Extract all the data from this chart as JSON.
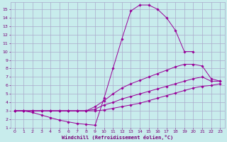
{
  "background_color": "#c8ecec",
  "grid_color": "#aaaacc",
  "line_color": "#990099",
  "marker_color": "#990099",
  "xlabel": "Windchill (Refroidissement éolien,°C)",
  "xlabel_color": "#770077",
  "tick_color": "#770077",
  "xlim": [
    -0.5,
    23.5
  ],
  "ylim": [
    1,
    15.8
  ],
  "xticks": [
    0,
    1,
    2,
    3,
    4,
    5,
    6,
    7,
    8,
    9,
    10,
    11,
    12,
    13,
    14,
    15,
    16,
    17,
    18,
    19,
    20,
    21,
    22,
    23
  ],
  "yticks": [
    1,
    2,
    3,
    4,
    5,
    6,
    7,
    8,
    9,
    10,
    11,
    12,
    13,
    14,
    15
  ],
  "curve1_x": [
    0,
    1,
    2,
    3,
    4,
    5,
    6,
    7,
    8,
    9,
    10,
    11,
    12,
    13,
    14,
    15,
    16,
    17,
    18,
    19,
    20
  ],
  "curve1_y": [
    3.0,
    3.0,
    2.8,
    2.5,
    2.2,
    1.9,
    1.7,
    1.5,
    1.4,
    1.3,
    4.5,
    8.0,
    11.5,
    14.8,
    15.5,
    15.5,
    15.0,
    14.0,
    12.5,
    10.0,
    10.0
  ],
  "curve2_x": [
    0,
    1,
    2,
    3,
    4,
    5,
    6,
    7,
    8,
    9,
    10,
    11,
    12,
    13,
    14,
    15,
    16,
    17,
    18,
    19,
    20,
    21,
    22,
    23
  ],
  "curve2_y": [
    3.0,
    3.0,
    3.0,
    3.0,
    3.0,
    3.0,
    3.0,
    3.0,
    3.0,
    3.5,
    4.2,
    5.0,
    5.7,
    6.2,
    6.6,
    7.0,
    7.4,
    7.8,
    8.2,
    8.5,
    8.5,
    8.3,
    6.8,
    6.5
  ],
  "curve3_x": [
    0,
    1,
    2,
    3,
    4,
    5,
    6,
    7,
    8,
    9,
    10,
    11,
    12,
    13,
    14,
    15,
    16,
    17,
    18,
    19,
    20,
    21,
    22,
    23
  ],
  "curve3_y": [
    3.0,
    3.0,
    3.0,
    3.0,
    3.0,
    3.0,
    3.0,
    3.0,
    3.0,
    3.2,
    3.7,
    4.0,
    4.4,
    4.7,
    5.0,
    5.3,
    5.6,
    5.9,
    6.2,
    6.5,
    6.8,
    7.0,
    6.5,
    6.5
  ],
  "curve4_x": [
    0,
    1,
    2,
    3,
    4,
    5,
    6,
    7,
    8,
    9,
    10,
    11,
    12,
    13,
    14,
    15,
    16,
    17,
    18,
    19,
    20,
    21,
    22,
    23
  ],
  "curve4_y": [
    3.0,
    3.0,
    3.0,
    3.0,
    3.0,
    3.0,
    3.0,
    3.0,
    3.0,
    3.0,
    3.1,
    3.3,
    3.5,
    3.7,
    3.9,
    4.2,
    4.5,
    4.8,
    5.1,
    5.4,
    5.7,
    5.9,
    6.0,
    6.2
  ]
}
